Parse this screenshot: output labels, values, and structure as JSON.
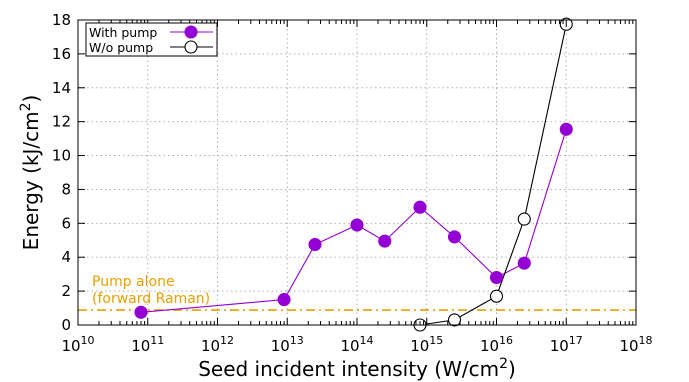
{
  "chart_data": {
    "type": "line",
    "title": "",
    "xlabel": "Seed incident intensity (W/cm",
    "xlabel_sup": "2",
    "xlabel_end": ")",
    "ylabel": "Energy (kJ/cm",
    "ylabel_sup": "2",
    "ylabel_end": ")",
    "x_scale": "log",
    "xlim": [
      10000000000.0,
      1e+18
    ],
    "ylim": [
      0,
      18
    ],
    "x_ticks": [
      {
        "base": "10",
        "exp": "10",
        "value": 10000000000.0
      },
      {
        "base": "10",
        "exp": "11",
        "value": 100000000000.0
      },
      {
        "base": "10",
        "exp": "12",
        "value": 1000000000000.0
      },
      {
        "base": "10",
        "exp": "13",
        "value": 10000000000000.0
      },
      {
        "base": "10",
        "exp": "14",
        "value": 100000000000000.0
      },
      {
        "base": "10",
        "exp": "15",
        "value": 1000000000000000.0
      },
      {
        "base": "10",
        "exp": "16",
        "value": 1e+16
      },
      {
        "base": "10",
        "exp": "17",
        "value": 1e+17
      },
      {
        "base": "10",
        "exp": "18",
        "value": 1e+18
      }
    ],
    "y_ticks": [
      "0",
      "2",
      "4",
      "6",
      "8",
      "10",
      "12",
      "14",
      "16",
      "18"
    ],
    "grid": true,
    "legend_position": "top-left",
    "series": [
      {
        "name": "With pump",
        "color": "#9400d3",
        "marker": "filled-circle",
        "x": [
          80000000000.0,
          9000000000000.0,
          25000000000000.0,
          100000000000000.0,
          250000000000000.0,
          800000000000000.0,
          2500000000000000.0,
          1e+16,
          2.5e+16,
          1e+17
        ],
        "y": [
          0.75,
          1.5,
          4.75,
          5.9,
          4.95,
          6.95,
          5.2,
          2.8,
          3.65,
          11.55
        ]
      },
      {
        "name": "W/o pump",
        "color": "#000000",
        "marker": "open-circle",
        "x": [
          800000000000000.0,
          2500000000000000.0,
          1e+16,
          2.5e+16,
          1e+17
        ],
        "y": [
          0.0,
          0.3,
          1.7,
          6.25,
          17.75
        ]
      }
    ],
    "annotations": [
      {
        "name": "pump-alone-line",
        "line1": "Pump alone",
        "line2": "(forward Raman)",
        "y": 0.88,
        "color": "#e8a000",
        "style": "dash-dot"
      }
    ]
  }
}
